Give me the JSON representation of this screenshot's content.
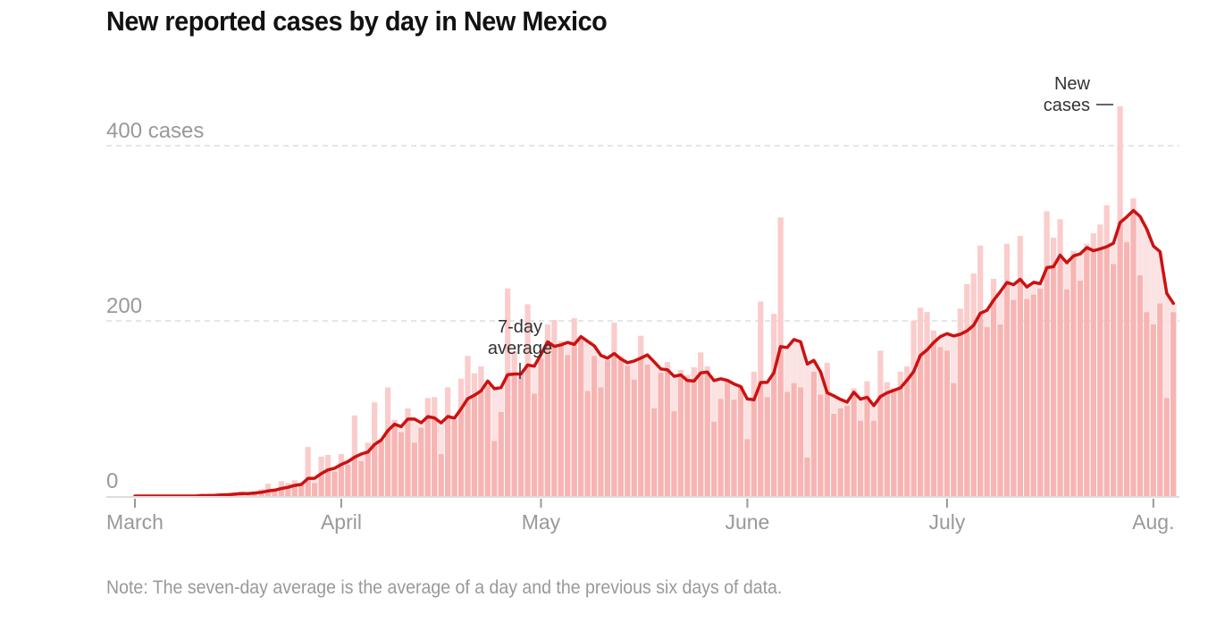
{
  "title": "New reported cases by day in New Mexico",
  "note": "Note: The seven-day average is the average of a day and the previous six days of data.",
  "colors": {
    "bar": "#f6b5b3",
    "bar_above_avg": "#fbcccc",
    "avg_fill": "#fbe3e3",
    "line": "#cc1111",
    "grid": "#dddddd",
    "axis": "#dddddd",
    "tick_text": "#999999",
    "annotation": "#333333"
  },
  "chart_data": {
    "type": "bar",
    "title": "New reported cases by day in New Mexico",
    "xlabel": "",
    "ylabel": "cases",
    "ylim": [
      0,
      450
    ],
    "grid": true,
    "start_date": "March 1",
    "y_ticks": [
      {
        "value": 0,
        "label": "0"
      },
      {
        "value": 200,
        "label": "200"
      },
      {
        "value": 400,
        "label": "400 cases"
      }
    ],
    "x_ticks": [
      {
        "day_index": 0,
        "label": "March"
      },
      {
        "day_index": 31,
        "label": "April"
      },
      {
        "day_index": 61,
        "label": "May"
      },
      {
        "day_index": 92,
        "label": "June"
      },
      {
        "day_index": 122,
        "label": "July"
      },
      {
        "day_index": 153,
        "label": "Aug."
      }
    ],
    "series": [
      {
        "name": "New cases",
        "type": "bar",
        "values": [
          0,
          0,
          0,
          0,
          0,
          0,
          0,
          0,
          0,
          0,
          3,
          1,
          2,
          3,
          2,
          4,
          5,
          3,
          5,
          8,
          14,
          8,
          17,
          15,
          18,
          13,
          56,
          15,
          45,
          47,
          28,
          48,
          36,
          92,
          40,
          61,
          107,
          63,
          124,
          87,
          73,
          100,
          61,
          78,
          112,
          113,
          48,
          124,
          87,
          134,
          160,
          140,
          148,
          126,
          63,
          96,
          237,
          165,
          141,
          219,
          117,
          157,
          196,
          201,
          177,
          161,
          203,
          179,
          120,
          160,
          124,
          155,
          198,
          160,
          149,
          133,
          183,
          150,
          100,
          141,
          153,
          97,
          144,
          138,
          147,
          164,
          148,
          85,
          111,
          131,
          110,
          126,
          65,
          142,
          222,
          113,
          208,
          318,
          119,
          129,
          124,
          44,
          142,
          116,
          152,
          94,
          100,
          103,
          123,
          86,
          131,
          86,
          166,
          130,
          123,
          142,
          148,
          200,
          215,
          210,
          189,
          170,
          166,
          129,
          214,
          242,
          254,
          286,
          193,
          248,
          196,
          288,
          224,
          297,
          225,
          230,
          237,
          325,
          295,
          316,
          236,
          280,
          246,
          288,
          300,
          310,
          332,
          265,
          445,
          290,
          340,
          252,
          210,
          196,
          220,
          112,
          210
        ]
      },
      {
        "name": "7-day average",
        "type": "line",
        "derived_from": "New cases",
        "window_days": 7
      }
    ],
    "annotations": [
      {
        "label_lines": [
          "7-day",
          "average"
        ],
        "target": "7-day average line"
      },
      {
        "label_lines": [
          "New",
          "cases"
        ],
        "target": "New cases bars"
      }
    ]
  }
}
